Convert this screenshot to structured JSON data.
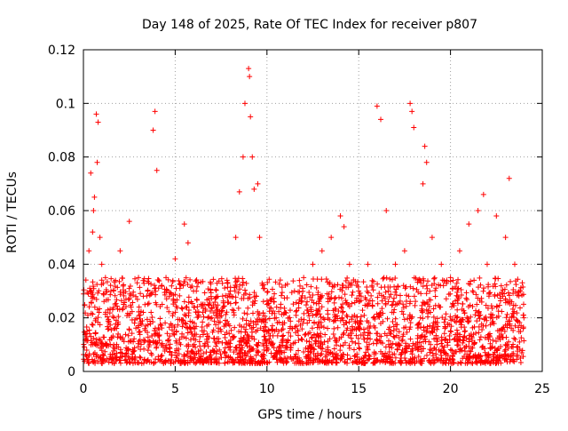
{
  "chart_data": {
    "type": "scatter",
    "title": "Day 148 of 2025, Rate Of TEC Index for receiver p807",
    "xlabel": "GPS time / hours",
    "ylabel": "ROTI / TECUs",
    "xlim": [
      0,
      25
    ],
    "ylim": [
      0,
      0.12
    ],
    "xticks": [
      0,
      5,
      10,
      15,
      20,
      25
    ],
    "xtick_labels": [
      "0",
      "5",
      "10",
      "15",
      "20",
      "25"
    ],
    "yticks": [
      0,
      0.02,
      0.04,
      0.06,
      0.08,
      0.1,
      0.12
    ],
    "ytick_labels": [
      "0",
      "0.02",
      "0.04",
      "0.06",
      "0.08",
      "0.1",
      "0.12"
    ],
    "grid": true,
    "marker": "+",
    "series": [
      {
        "color": "#ff0000",
        "x": [
          0.2,
          0.3,
          0.4,
          0.5,
          0.55,
          0.6,
          0.7,
          0.75,
          0.8,
          0.9,
          1.0,
          1.2,
          1.5,
          2.0,
          2.5,
          3.0,
          3.5,
          3.8,
          3.9,
          4.0,
          4.5,
          5.0,
          5.5,
          5.7,
          6.0,
          6.5,
          7.0,
          7.5,
          8.0,
          8.3,
          8.5,
          8.7,
          8.8,
          9.0,
          9.05,
          9.1,
          9.2,
          9.3,
          9.5,
          9.6,
          10.0,
          10.5,
          11.0,
          11.5,
          12.0,
          12.5,
          13.0,
          13.5,
          14.0,
          14.2,
          14.5,
          15.0,
          15.5,
          16.0,
          16.2,
          16.5,
          17.0,
          17.5,
          17.8,
          17.9,
          18.0,
          18.5,
          18.6,
          18.7,
          19.0,
          19.5,
          20.0,
          20.5,
          21.0,
          21.5,
          21.8,
          22.0,
          22.5,
          23.0,
          23.2,
          23.5,
          23.8,
          24.0
        ],
        "y": [
          0.015,
          0.045,
          0.074,
          0.052,
          0.06,
          0.065,
          0.096,
          0.078,
          0.093,
          0.05,
          0.04,
          0.035,
          0.03,
          0.045,
          0.056,
          0.035,
          0.03,
          0.09,
          0.097,
          0.075,
          0.035,
          0.042,
          0.055,
          0.048,
          0.03,
          0.025,
          0.02,
          0.015,
          0.03,
          0.05,
          0.067,
          0.08,
          0.1,
          0.113,
          0.11,
          0.095,
          0.08,
          0.068,
          0.07,
          0.05,
          0.025,
          0.02,
          0.022,
          0.03,
          0.035,
          0.04,
          0.045,
          0.05,
          0.058,
          0.054,
          0.04,
          0.03,
          0.04,
          0.099,
          0.094,
          0.06,
          0.04,
          0.045,
          0.1,
          0.097,
          0.091,
          0.07,
          0.084,
          0.078,
          0.05,
          0.04,
          0.035,
          0.045,
          0.055,
          0.06,
          0.066,
          0.04,
          0.058,
          0.05,
          0.072,
          0.04,
          0.03,
          0.02
        ]
      }
    ]
  }
}
